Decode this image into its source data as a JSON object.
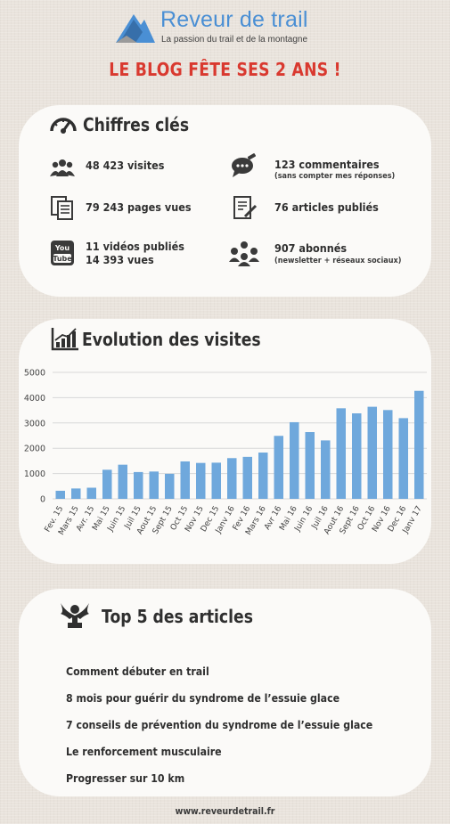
{
  "header": {
    "brand_name": "Reveur de trail",
    "tagline": "La passion du trail et de la montagne",
    "logo_icon": "mountain-logo-icon"
  },
  "main_title": "LE BLOG FÊTE SES 2 ANS !",
  "colors": {
    "accent": "#4a8fd4",
    "title_red": "#d9392f",
    "bar": "#6fa8dc"
  },
  "key_figures": {
    "title": "Chiffres clés",
    "icon": "speedometer-icon",
    "stats": [
      {
        "icon": "people-icon",
        "line1": "48 423 visites",
        "line2": ""
      },
      {
        "icon": "chat-bubble-icon",
        "line1": "123 commentaires",
        "line2": "(sans compter mes réponses)"
      },
      {
        "icon": "pages-icon",
        "line1": "79 243 pages vues",
        "line2": ""
      },
      {
        "icon": "edit-document-icon",
        "line1": "76 articles publiés",
        "line2": ""
      },
      {
        "icon": "youtube-icon",
        "line1": "11 vidéos publiés",
        "line2": "14 393 vues"
      },
      {
        "icon": "group-icon",
        "line1": "907 abonnés",
        "line2": "(newsletter + réseaux sociaux)"
      }
    ]
  },
  "visits": {
    "title": "Evolution des visites",
    "icon": "growth-chart-icon"
  },
  "chart_data": {
    "type": "bar",
    "title": "Evolution des visites",
    "xlabel": "",
    "ylabel": "",
    "ylim": [
      0,
      5000
    ],
    "yticks": [
      "0",
      "1000",
      "2000",
      "3000",
      "4000",
      "5000"
    ],
    "grid": true,
    "categories": [
      "Fev. 15",
      "Mars 15",
      "Avr. 15",
      "Mai 15",
      "Juin 15",
      "Juil 15",
      "Aout 15",
      "Sept 15",
      "Oct 15",
      "Nov 15",
      "Dec 15",
      "Janv 16",
      "Fev 16",
      "Mars 16",
      "Avr 16",
      "Mai 16",
      "Juin 16",
      "Juil 16",
      "Aout 16",
      "Sept 16",
      "Oct 16",
      "Nov 16",
      "Dec 16",
      "Janv 17"
    ],
    "values": [
      320,
      410,
      440,
      1150,
      1350,
      1060,
      1080,
      990,
      1480,
      1420,
      1430,
      1610,
      1660,
      1830,
      2490,
      3030,
      2640,
      2310,
      3580,
      3380,
      3640,
      3510,
      3190,
      4270
    ]
  },
  "top_articles": {
    "title": "Top 5 des articles",
    "icon": "trophy-icon",
    "items": [
      "Comment débuter en trail",
      "8 mois pour guérir du syndrome de l’essuie glace",
      "7 conseils de prévention du syndrome de l’essuie glace",
      "Le renforcement musculaire",
      "Progresser sur 10 km"
    ]
  },
  "footer": "www.reveurdetrail.fr"
}
